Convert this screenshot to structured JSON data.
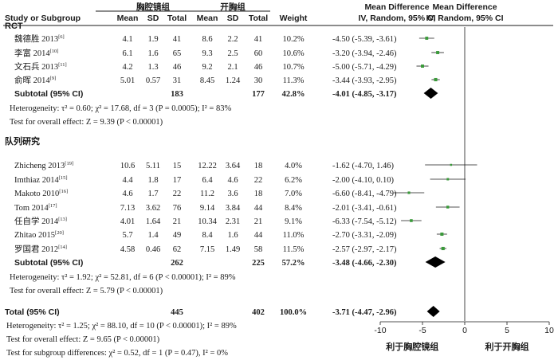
{
  "header": {
    "group1_name": "胸腔镜组",
    "group2_name": "开胸组",
    "study_col": "Study or Subgroup",
    "mean": "Mean",
    "sd": "SD",
    "total": "Total",
    "weight": "Weight",
    "md_title": "Mean Difference",
    "md_sub": "IV, Random, 95% CI"
  },
  "chart_data": {
    "type": "forest",
    "x_ticks": [
      "-10",
      "-5",
      "0",
      "5",
      "10"
    ],
    "xlim": [
      -10,
      10
    ],
    "x_label_left": "利于胸腔镜组",
    "x_label_right": "利于开胸组",
    "subgroups": [
      {
        "name": "RCT",
        "studies": [
          {
            "name": "魏德胜 2013",
            "ref": "[6]",
            "m1": "4.1",
            "sd1": "1.9",
            "n1": "41",
            "m2": "8.6",
            "sd2": "2.2",
            "n2": "41",
            "weight": "10.2%",
            "ci_text": "-4.50 (-5.39, -3.61)",
            "md": -4.5,
            "lo": -5.39,
            "hi": -3.61,
            "w": 10.2
          },
          {
            "name": "李富 2014",
            "ref": "[10]",
            "m1": "6.1",
            "sd1": "1.6",
            "n1": "65",
            "m2": "9.3",
            "sd2": "2.5",
            "n2": "60",
            "weight": "10.6%",
            "ci_text": "-3.20 (-3.94, -2.46)",
            "md": -3.2,
            "lo": -3.94,
            "hi": -2.46,
            "w": 10.6
          },
          {
            "name": "文石兵 2013",
            "ref": "[11]",
            "m1": "4.2",
            "sd1": "1.3",
            "n1": "46",
            "m2": "9.2",
            "sd2": "2.1",
            "n2": "46",
            "weight": "10.7%",
            "ci_text": "-5.00 (-5.71, -4.29)",
            "md": -5.0,
            "lo": -5.71,
            "hi": -4.29,
            "w": 10.7
          },
          {
            "name": "俞晖 2014",
            "ref": "[9]",
            "m1": "5.01",
            "sd1": "0.57",
            "n1": "31",
            "m2": "8.45",
            "sd2": "1.24",
            "n2": "30",
            "weight": "11.3%",
            "ci_text": "-3.44 (-3.93, -2.95)",
            "md": -3.44,
            "lo": -3.93,
            "hi": -2.95,
            "w": 11.3
          }
        ],
        "subtotal": {
          "label": "Subtotal (95% CI)",
          "n1": "183",
          "n2": "177",
          "weight": "42.8%",
          "ci_text": "-4.01 (-4.85, -3.17)",
          "md": -4.01,
          "lo": -4.85,
          "hi": -3.17
        },
        "heterogeneity": "Heterogeneity: τ² = 0.60; χ² = 17.68, df = 3 (P = 0.0005); I² = 83%",
        "overall_test": "Test for overall effect: Z = 9.39 (P < 0.00001)"
      },
      {
        "name": "队列研究",
        "studies": [
          {
            "name": "Zhicheng 2013",
            "ref": "[19]",
            "m1": "10.6",
            "sd1": "5.11",
            "n1": "15",
            "m2": "12.22",
            "sd2": "3.64",
            "n2": "18",
            "weight": "4.0%",
            "ci_text": "-1.62 (-4.70, 1.46)",
            "md": -1.62,
            "lo": -4.7,
            "hi": 1.46,
            "w": 4.0
          },
          {
            "name": "Imthiaz 2014",
            "ref": "[15]",
            "m1": "4.4",
            "sd1": "1.8",
            "n1": "17",
            "m2": "6.4",
            "sd2": "4.6",
            "n2": "22",
            "weight": "6.2%",
            "ci_text": "-2.00 (-4.10, 0.10)",
            "md": -2.0,
            "lo": -4.1,
            "hi": 0.1,
            "w": 6.2
          },
          {
            "name": "Makoto 2010",
            "ref": "[16]",
            "m1": "4.6",
            "sd1": "1.7",
            "n1": "22",
            "m2": "11.2",
            "sd2": "3.6",
            "n2": "18",
            "weight": "7.0%",
            "ci_text": "-6.60 (-8.41, -4.79)",
            "md": -6.6,
            "lo": -8.41,
            "hi": -4.79,
            "w": 7.0
          },
          {
            "name": "Tom 2014",
            "ref": "[17]",
            "m1": "7.13",
            "sd1": "3.62",
            "n1": "76",
            "m2": "9.14",
            "sd2": "3.84",
            "n2": "44",
            "weight": "8.4%",
            "ci_text": "-2.01 (-3.41, -0.61)",
            "md": -2.01,
            "lo": -3.41,
            "hi": -0.61,
            "w": 8.4
          },
          {
            "name": "任自学 2014",
            "ref": "[13]",
            "m1": "4.01",
            "sd1": "1.64",
            "n1": "21",
            "m2": "10.34",
            "sd2": "2.31",
            "n2": "21",
            "weight": "9.1%",
            "ci_text": "-6.33 (-7.54, -5.12)",
            "md": -6.33,
            "lo": -7.54,
            "hi": -5.12,
            "w": 9.1
          },
          {
            "name": "Zhitao 2015",
            "ref": "[20]",
            "m1": "5.7",
            "sd1": "1.4",
            "n1": "49",
            "m2": "8.4",
            "sd2": "1.6",
            "n2": "44",
            "weight": "11.0%",
            "ci_text": "-2.70 (-3.31, -2.09)",
            "md": -2.7,
            "lo": -3.31,
            "hi": -2.09,
            "w": 11.0
          },
          {
            "name": "罗国君 2012",
            "ref": "[14]",
            "m1": "4.58",
            "sd1": "0.46",
            "n1": "62",
            "m2": "7.15",
            "sd2": "1.49",
            "n2": "58",
            "weight": "11.5%",
            "ci_text": "-2.57 (-2.97, -2.17)",
            "md": -2.57,
            "lo": -2.97,
            "hi": -2.17,
            "w": 11.5
          }
        ],
        "subtotal": {
          "label": "Subtotal (95% CI)",
          "n1": "262",
          "n2": "225",
          "weight": "57.2%",
          "ci_text": "-3.48 (-4.66, -2.30)",
          "md": -3.48,
          "lo": -4.66,
          "hi": -2.3
        },
        "heterogeneity": "Heterogeneity: τ² = 1.92; χ² = 52.81, df = 6 (P < 0.00001); I² = 89%",
        "overall_test": "Test for overall effect: Z = 5.79 (P < 0.00001)"
      }
    ],
    "total": {
      "label": "Total (95% CI)",
      "n1": "445",
      "n2": "402",
      "weight": "100.0%",
      "ci_text": "-3.71 (-4.47, -2.96)",
      "md": -3.71,
      "lo": -4.47,
      "hi": -2.96
    },
    "footer": [
      "Heterogeneity: τ² = 1.25; χ² = 88.10, df = 10 (P < 0.00001); I² = 89%",
      "Test for overall effect: Z = 9.65 (P < 0.00001)",
      "Test for subgroup differences: χ² = 0.52, df = 1 (P = 0.47), I² = 0%"
    ],
    "colors": {
      "marker": "#3a9a3a",
      "diamond": "#000000",
      "text": "#1a1a1a"
    }
  }
}
